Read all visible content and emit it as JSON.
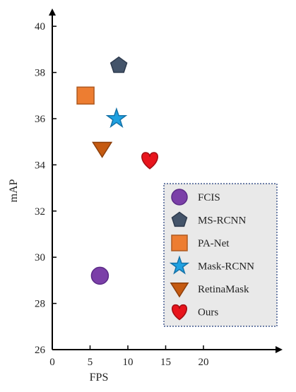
{
  "chart_data": {
    "type": "scatter",
    "xlabel": "FPS",
    "ylabel": "mAP",
    "xlim": [
      0,
      30
    ],
    "ylim": [
      26,
      41
    ],
    "xticks": [
      0,
      5,
      10,
      15,
      20
    ],
    "yticks": [
      26,
      28,
      30,
      32,
      34,
      36,
      38,
      40
    ],
    "grid": false,
    "legend_position": "bottom-right",
    "points": [
      {
        "name": "FCIS",
        "x": 6.3,
        "y": 29.2,
        "marker": "circle",
        "color": "#7B3FA8",
        "edge": "#5A2A86"
      },
      {
        "name": "MS-RCNN",
        "x": 8.8,
        "y": 38.3,
        "marker": "pentagon",
        "color": "#44546A",
        "edge": "#2E3B4E"
      },
      {
        "name": "PA-Net",
        "x": 4.4,
        "y": 37.0,
        "marker": "square",
        "color": "#ED7D31",
        "edge": "#AE5A21"
      },
      {
        "name": "Mask-RCNN",
        "x": 8.5,
        "y": 36.0,
        "marker": "star",
        "color": "#1FA1E1",
        "edge": "#1472A8"
      },
      {
        "name": "RetinaMask",
        "x": 6.6,
        "y": 34.7,
        "marker": "triangle-down",
        "color": "#C55A11",
        "edge": "#8C3F0C"
      },
      {
        "name": "Ours",
        "x": 12.9,
        "y": 34.2,
        "marker": "heart",
        "color": "#E8141C",
        "edge": "#A10E13"
      }
    ]
  }
}
